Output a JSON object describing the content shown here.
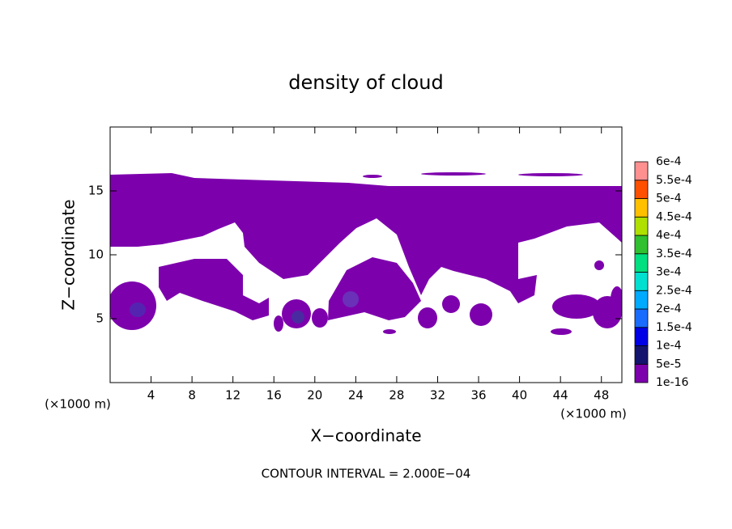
{
  "chart_data": {
    "type": "contour",
    "title": "density of cloud",
    "x_label": "X−coordinate",
    "y_label": "Z−coordinate",
    "x_unit_label": "(×1000 m)",
    "y_unit_label": "(×1000 m)",
    "footer": "CONTOUR INTERVAL = 2.000E−04",
    "xlim": [
      0,
      50
    ],
    "ylim": [
      0,
      20
    ],
    "xticks": [
      4,
      8,
      12,
      16,
      20,
      24,
      28,
      32,
      36,
      40,
      44,
      48
    ],
    "yticks": [
      5,
      10,
      15
    ],
    "colorbar": {
      "levels": [
        {
          "value": 1e-16,
          "label": "1e-16"
        },
        {
          "value": 5e-05,
          "label": "5e-5"
        },
        {
          "value": 0.0001,
          "label": "1e-4"
        },
        {
          "value": 0.00015,
          "label": "1.5e-4"
        },
        {
          "value": 0.0002,
          "label": "2e-4"
        },
        {
          "value": 0.00025,
          "label": "2.5e-4"
        },
        {
          "value": 0.0003,
          "label": "3e-4"
        },
        {
          "value": 0.00035,
          "label": "3.5e-4"
        },
        {
          "value": 0.0004,
          "label": "4e-4"
        },
        {
          "value": 0.00045,
          "label": "4.5e-4"
        },
        {
          "value": 0.0005,
          "label": "5e-4"
        },
        {
          "value": 0.00055,
          "label": "5.5e-4"
        },
        {
          "value": 0.0006,
          "label": "6e-4"
        }
      ],
      "colors": [
        "#7d00ad",
        "#14146e",
        "#0000e6",
        "#1a6cff",
        "#00aaff",
        "#00e0d0",
        "#00e080",
        "#30c030",
        "#b0e000",
        "#ffc000",
        "#ff5000",
        "#ff9090"
      ]
    }
  }
}
